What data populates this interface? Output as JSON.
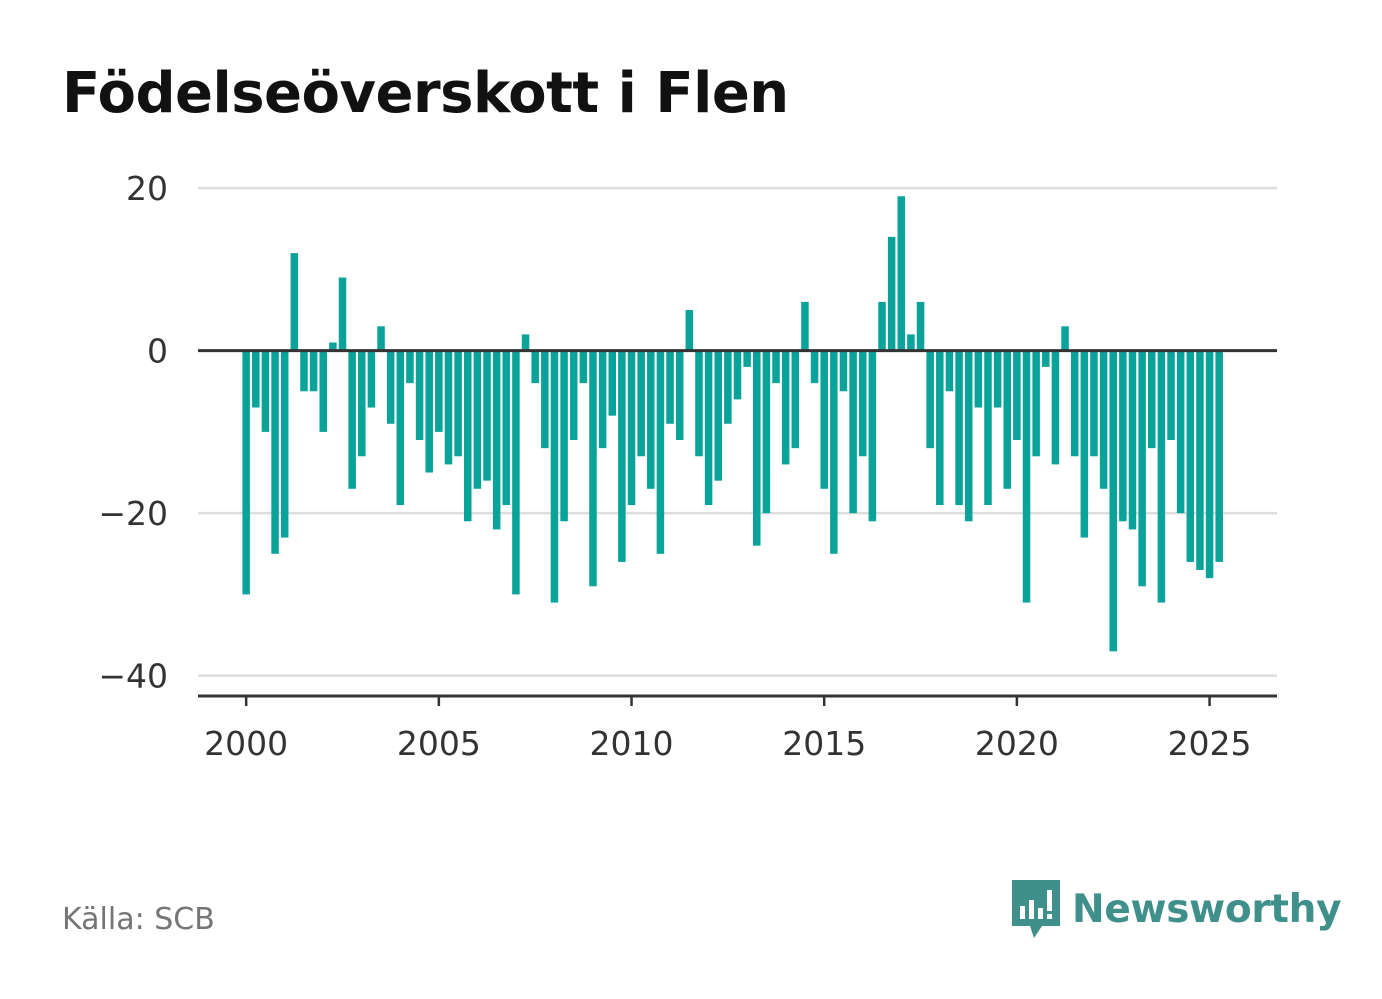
{
  "title": "Födelseöverskott i Flen",
  "source": "Källa: SCB",
  "brand": {
    "name": "Newsworthy",
    "icon": "newsworthy-logo-icon"
  },
  "colors": {
    "bar": "#0aa39a",
    "grid": "#dddddd",
    "axis": "#333333",
    "text": "#333333",
    "brand": "#3f8f8a"
  },
  "chart_data": {
    "type": "bar",
    "title": "Födelseöverskott i Flen",
    "xlabel": "",
    "ylabel": "",
    "x_start": 2000,
    "x_step": 0.25,
    "values": [
      -30,
      -7,
      -10,
      -25,
      -23,
      12,
      -5,
      -5,
      -10,
      1,
      9,
      -17,
      -13,
      -7,
      3,
      -9,
      -19,
      -4,
      -11,
      -15,
      -10,
      -14,
      -13,
      -21,
      -17,
      -16,
      -22,
      -19,
      -30,
      2,
      -4,
      -12,
      -31,
      -21,
      -11,
      -4,
      -29,
      -12,
      -8,
      -26,
      -19,
      -13,
      -17,
      -25,
      -9,
      -11,
      5,
      -13,
      -19,
      -16,
      -9,
      -6,
      -2,
      -24,
      -20,
      -4,
      -14,
      -12,
      6,
      -4,
      -17,
      -25,
      -5,
      -20,
      -13,
      -21,
      6,
      14,
      19,
      2,
      6,
      -12,
      -19,
      -5,
      -19,
      -21,
      -7,
      -19,
      -7,
      -17,
      -11,
      -31,
      -13,
      -2,
      -14,
      3,
      -13,
      -23,
      -13,
      -17,
      -37,
      -21,
      -22,
      -29,
      -12,
      -31,
      -11,
      -20,
      -26,
      -27,
      -28,
      -26
    ],
    "y_ticks": [
      20,
      0,
      -20,
      -40
    ],
    "y_tick_labels": [
      "20",
      "0",
      "−20",
      "−40"
    ],
    "x_ticks": [
      2000,
      2005,
      2010,
      2015,
      2020,
      2025
    ],
    "x_tick_labels": [
      "2000",
      "2005",
      "2010",
      "2015",
      "2020",
      "2025"
    ],
    "xlim": [
      1998.75,
      2026.75
    ],
    "ylim": [
      -42.5,
      21
    ],
    "grid": true,
    "legend": "none"
  }
}
